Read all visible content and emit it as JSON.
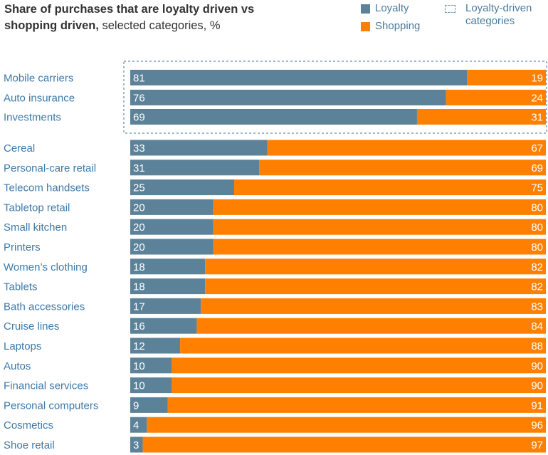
{
  "chart_data": {
    "type": "bar",
    "orientation": "horizontal",
    "stacked": true,
    "title_bold": "Share of purchases that are loyalty driven vs shopping driven,",
    "title_regular": " selected categories, %",
    "legend": {
      "loyalty": "Loyalty",
      "shopping": "Shopping",
      "highlight": "Loyalty-driven categories"
    },
    "colors": {
      "loyalty": "#5b8299",
      "shopping": "#ff8000",
      "label": "#3e79a8",
      "highlight_border": "#6f8ea5"
    },
    "highlight_group": [
      "Mobile carriers",
      "Auto insurance",
      "Investments"
    ],
    "categories": [
      "Mobile carriers",
      "Auto insurance",
      "Investments",
      "Cereal",
      "Personal-care retail",
      "Telecom handsets",
      "Tabletop retail",
      "Small kitchen",
      "Printers",
      "Women’s clothing",
      "Tablets",
      "Bath accessories",
      "Cruise lines",
      "Laptops",
      "Autos",
      "Financial services",
      "Personal computers",
      "Cosmetics",
      "Shoe retail"
    ],
    "series": [
      {
        "name": "Loyalty",
        "values": [
          81,
          76,
          69,
          33,
          31,
          25,
          20,
          20,
          20,
          18,
          18,
          17,
          16,
          12,
          10,
          10,
          9,
          4,
          3
        ]
      },
      {
        "name": "Shopping",
        "values": [
          19,
          24,
          31,
          67,
          69,
          75,
          80,
          80,
          80,
          82,
          82,
          83,
          84,
          88,
          90,
          90,
          91,
          96,
          97
        ]
      }
    ],
    "xlim": [
      0,
      100
    ]
  }
}
